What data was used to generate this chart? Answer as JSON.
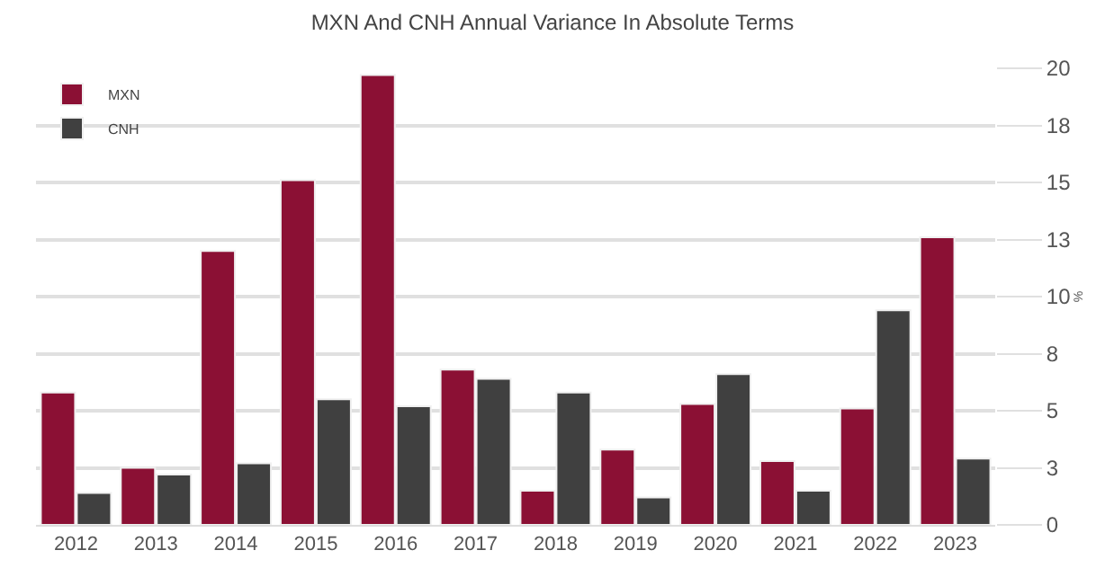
{
  "chart_data": {
    "type": "bar",
    "title": "MXN And CNH Annual Variance In Absolute Terms",
    "ylabel": "%",
    "categories": [
      "2012",
      "2013",
      "2014",
      "2015",
      "2016",
      "2017",
      "2018",
      "2019",
      "2020",
      "2021",
      "2022",
      "2023"
    ],
    "series": [
      {
        "name": "MXN",
        "color": "#8b1034",
        "values": [
          5.8,
          2.5,
          12.0,
          15.1,
          19.7,
          6.8,
          1.5,
          3.3,
          5.3,
          2.8,
          5.1,
          12.6
        ]
      },
      {
        "name": "CNH",
        "color": "#404040",
        "values": [
          1.4,
          2.2,
          2.7,
          5.5,
          5.2,
          6.4,
          5.8,
          1.2,
          6.6,
          1.5,
          9.4,
          2.9
        ]
      }
    ],
    "ylim": [
      0,
      20
    ],
    "yticks": [
      0,
      {
        "value": 2.5,
        "label": "3"
      },
      5,
      {
        "value": 7.5,
        "label": "8"
      },
      10,
      {
        "value": 12.5,
        "label": "13"
      },
      15,
      {
        "value": 17.5,
        "label": "18"
      },
      20
    ],
    "grid": "y",
    "legend": "top left"
  }
}
